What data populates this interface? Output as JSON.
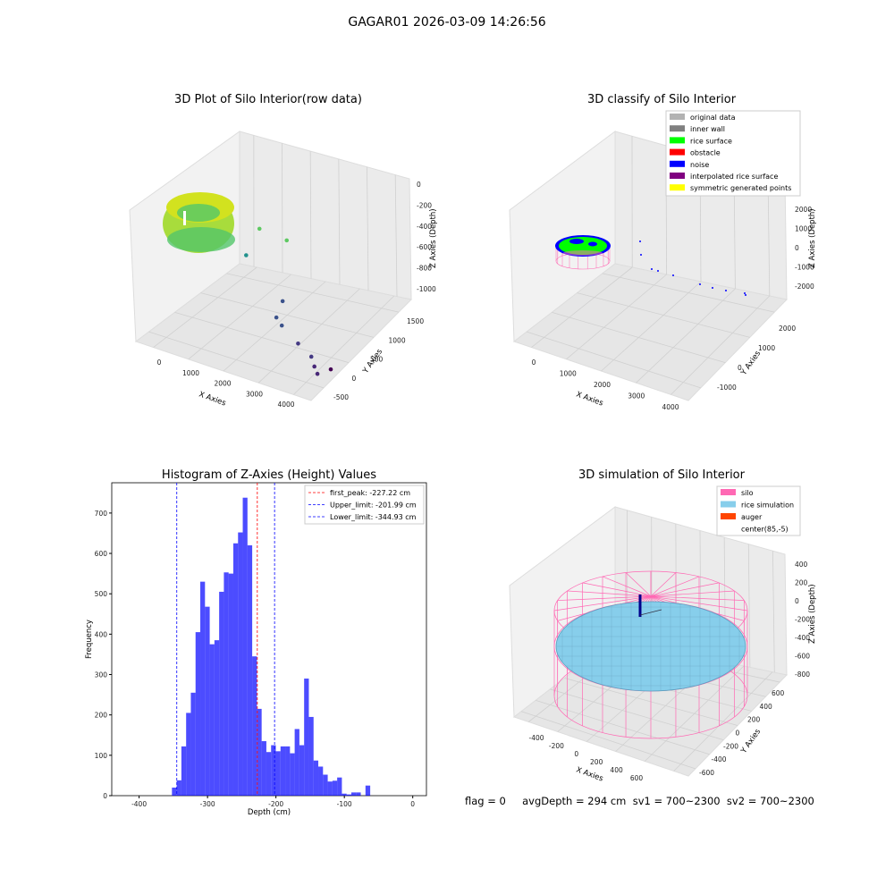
{
  "page": {
    "suptitle": "GAGAR01 2026-03-09 14:26:56"
  },
  "chart_data": [
    {
      "type": "scatter",
      "title": "3D Plot of Silo Interior(row data)",
      "xlabel": "X Axies",
      "ylabel": "Y Axies",
      "zlabel": "Z Axies (Depth)",
      "xticks": [
        "0",
        "1000",
        "2000",
        "3000",
        "4000"
      ],
      "yticks": [
        "-500",
        "0",
        "500",
        "1000",
        "1500"
      ],
      "zticks": [
        "0",
        "-200",
        "-400",
        "-600",
        "-800",
        "-1000"
      ],
      "colormap": [
        "#440154",
        "#3b528b",
        "#21918c",
        "#5ec962",
        "#fde725"
      ],
      "outlier_points": [
        {
          "x": 1300,
          "y": 700,
          "z": -380,
          "c": "#5ec962"
        },
        {
          "x": 1200,
          "y": 500,
          "z": -550,
          "c": "#21918c"
        },
        {
          "x": 2000,
          "y": 700,
          "z": -400,
          "c": "#5ec962"
        },
        {
          "x": 2500,
          "y": 200,
          "z": -700,
          "c": "#3b528b"
        },
        {
          "x": 2400,
          "y": 150,
          "z": -830,
          "c": "#3b528b"
        },
        {
          "x": 2600,
          "y": 100,
          "z": -860,
          "c": "#3b528b"
        },
        {
          "x": 3200,
          "y": -50,
          "z": -900,
          "c": "#443983"
        },
        {
          "x": 3600,
          "y": -100,
          "z": -950,
          "c": "#443983"
        },
        {
          "x": 3800,
          "y": -200,
          "z": -980,
          "c": "#482878"
        },
        {
          "x": 4000,
          "y": -300,
          "z": -990,
          "c": "#482878"
        },
        {
          "x": 4100,
          "y": -100,
          "z": -1000,
          "c": "#440154"
        }
      ]
    },
    {
      "type": "scatter",
      "title": "3D classify of Silo Interior",
      "xlabel": "X Axies",
      "ylabel": "Y Axies",
      "zlabel": "Z Axies (Depth)",
      "xticks": [
        "0",
        "1000",
        "2000",
        "3000",
        "4000"
      ],
      "yticks": [
        "-1000",
        "0",
        "1000",
        "2000"
      ],
      "zticks": [
        "2000",
        "1000",
        "0",
        "-1000",
        "-2000"
      ],
      "legend": [
        {
          "label": "original data",
          "color": "#b2b2b2"
        },
        {
          "label": "inner wall",
          "color": "#808080"
        },
        {
          "label": "rice surface",
          "color": "#00ff00"
        },
        {
          "label": "obstacle",
          "color": "#ff0000"
        },
        {
          "label": "noise",
          "color": "#0000ff"
        },
        {
          "label": "interpolated rice surface",
          "color": "#800080"
        },
        {
          "label": "symmetric generated points",
          "color": "#ffff00"
        }
      ]
    },
    {
      "type": "bar",
      "title": "Histogram of Z-Axies (Height) Values",
      "xlabel": "Depth (cm)",
      "ylabel": "Frequency",
      "xlim": [
        -440,
        20
      ],
      "ylim": [
        0,
        775
      ],
      "xticks": [
        -400,
        -300,
        -200,
        -100,
        0
      ],
      "yticks": [
        0,
        100,
        200,
        300,
        400,
        500,
        600,
        700
      ],
      "bar_color": "#0000ff",
      "bin_start": -352,
      "bin_width": 6.9,
      "values": [
        20,
        38,
        122,
        205,
        255,
        405,
        530,
        468,
        375,
        385,
        505,
        553,
        550,
        625,
        652,
        738,
        620,
        345,
        215,
        135,
        108,
        125,
        110,
        122,
        122,
        105,
        165,
        125,
        290,
        195,
        87,
        72,
        52,
        35,
        37,
        45,
        5,
        3,
        8,
        8,
        0,
        25
      ],
      "vlines": [
        {
          "x": -227.22,
          "label": "first_peak: -227.22 cm",
          "color": "#ff0000"
        },
        {
          "x": -201.99,
          "label": "Upper_limit: -201.99 cm",
          "color": "#0000ff"
        },
        {
          "x": -344.93,
          "label": "Lower_limit: -344.93 cm",
          "color": "#0000ff"
        }
      ]
    },
    {
      "type": "surface",
      "title": "3D simulation of Silo Interior",
      "xlabel": "X Axies",
      "ylabel": "Y Axies",
      "zlabel": "Z Axies (Depth)",
      "xticks": [
        "-400",
        "-200",
        "0",
        "200",
        "400",
        "600"
      ],
      "yticks": [
        "-600",
        "-400",
        "-200",
        "0",
        "200",
        "400",
        "600"
      ],
      "zticks": [
        "400",
        "200",
        "0",
        "-200",
        "-400",
        "-600",
        "-800"
      ],
      "legend": [
        {
          "label": "silo",
          "color": "#ff69b4"
        },
        {
          "label": "rice simulation",
          "color": "#87ceeb"
        },
        {
          "label": "auger",
          "color": "#ff4500"
        },
        {
          "label": "center(85,-5)",
          "color": ""
        }
      ]
    }
  ],
  "footer": {
    "text": "flag = 0     avgDepth = 294 cm  sv1 = 700~2300  sv2 = 700~2300"
  }
}
